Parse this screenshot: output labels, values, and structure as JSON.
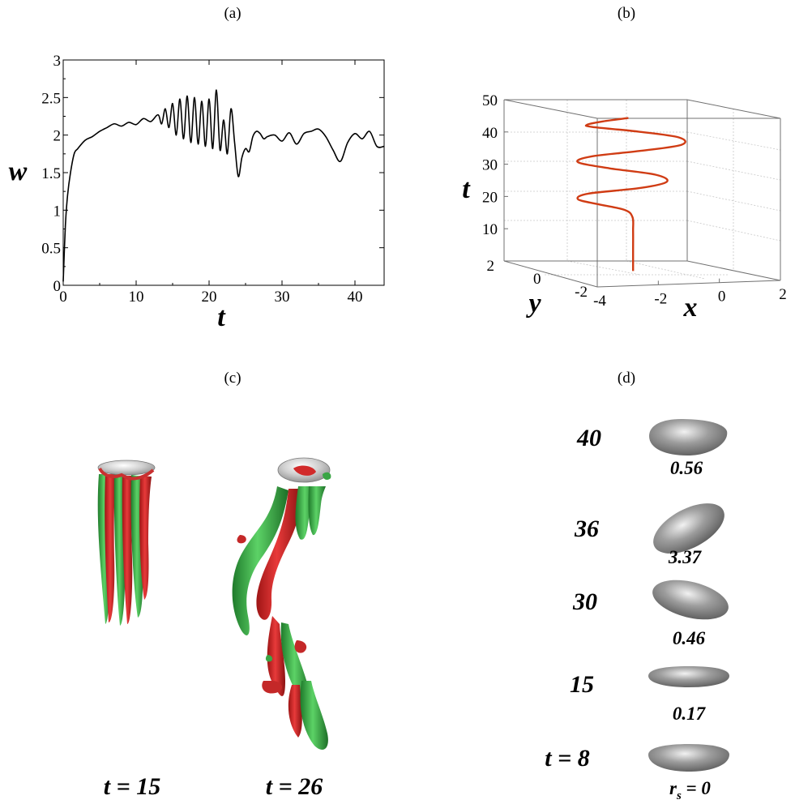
{
  "panels": {
    "a": "(a)",
    "b": "(b)",
    "c": "(c)",
    "d": "(d)"
  },
  "chart_data": [
    {
      "type": "line",
      "panel": "(a)",
      "xlabel": "t",
      "ylabel": "w",
      "xlim": [
        0,
        44
      ],
      "ylim": [
        0,
        3
      ],
      "xticks": [
        "0",
        "10",
        "20",
        "30",
        "40"
      ],
      "yticks": [
        "0",
        "0.5",
        "1",
        "1.5",
        "2",
        "2.5",
        "3"
      ],
      "grid": false,
      "series": [
        {
          "color": "#000000",
          "x": [
            0,
            0.3,
            0.6,
            1.0,
            1.5,
            2.0,
            3.0,
            4.0,
            5.0,
            6.0,
            7.0,
            8.0,
            9.0,
            10.0,
            11.0,
            12.0,
            13.0,
            13.5,
            14.0,
            14.5,
            15.0,
            15.5,
            16.0,
            16.5,
            17.0,
            17.5,
            18.0,
            18.5,
            19.0,
            19.5,
            20.0,
            20.5,
            21.0,
            21.5,
            22.0,
            22.5,
            23.0,
            23.5,
            24.0,
            24.5,
            25.0,
            25.5,
            26.0,
            26.5,
            27.0,
            27.5,
            28.0,
            29.0,
            30.0,
            31.0,
            32.0,
            33.0,
            34.0,
            35.0,
            36.0,
            37.0,
            38.0,
            39.0,
            40.0,
            41.0,
            42.0,
            43.0,
            44.0
          ],
          "y": [
            0.05,
            0.8,
            1.2,
            1.5,
            1.75,
            1.82,
            1.93,
            1.98,
            2.05,
            2.1,
            2.15,
            2.12,
            2.17,
            2.14,
            2.22,
            2.18,
            2.27,
            2.15,
            2.35,
            2.1,
            2.42,
            2.0,
            2.48,
            1.95,
            2.52,
            1.9,
            2.5,
            1.88,
            2.45,
            1.85,
            2.48,
            1.82,
            2.6,
            1.8,
            2.2,
            1.75,
            2.35,
            1.9,
            1.45,
            1.7,
            1.82,
            1.78,
            1.98,
            2.05,
            2.02,
            1.95,
            1.98,
            2.0,
            1.92,
            2.03,
            1.88,
            2.02,
            2.05,
            2.08,
            1.98,
            1.8,
            1.65,
            1.9,
            2.02,
            1.95,
            2.05,
            1.85,
            1.85
          ]
        }
      ]
    },
    {
      "type": "line",
      "panel": "(b)",
      "xlabel": "x",
      "ylabel": "y",
      "zlabel": "t",
      "xlim": [
        -4,
        2
      ],
      "ylim": [
        -2,
        2
      ],
      "zlim": [
        0,
        50
      ],
      "xticks": [
        "-4",
        "-2",
        "0",
        "2"
      ],
      "yticks": [
        "2",
        "0",
        "-2"
      ],
      "zticks": [
        "10",
        "20",
        "30",
        "40",
        "50"
      ],
      "grid": true,
      "series": [
        {
          "color": "#d03c14",
          "x": [
            -1.3,
            -1.3,
            -1.3,
            -1.32,
            -1.5,
            -2.2,
            -2.8,
            -2.6,
            -1.2,
            -0.5,
            -0.8,
            -2.0,
            -2.8,
            -2.5,
            -1.2,
            -0.1,
            -0.1,
            -1.2,
            -2.4,
            -2.5,
            -2.1,
            -1.3
          ],
          "y": [
            0,
            0,
            0,
            0,
            0.1,
            0.3,
            0.4,
            0.2,
            -0.2,
            -0.4,
            -0.3,
            0.1,
            0.4,
            0.2,
            -0.2,
            -0.5,
            -0.4,
            -0.1,
            0.3,
            0.4,
            0.3,
            0.2
          ],
          "t": [
            0,
            6,
            12,
            16,
            18,
            19.5,
            21,
            23,
            25,
            27,
            29,
            30.5,
            32,
            34,
            36,
            38,
            40,
            41.5,
            42.5,
            43,
            44,
            45
          ]
        }
      ]
    }
  ],
  "panel_c": {
    "labels": [
      "t = 15",
      "t = 26"
    ]
  },
  "panel_d": {
    "rows": [
      {
        "time": "40",
        "value": "0.56"
      },
      {
        "time": "36",
        "value": "3.37"
      },
      {
        "time": "30",
        "value": "0.46"
      },
      {
        "time": "15",
        "value": "0.17"
      },
      {
        "time": "t = 8",
        "value": "r",
        "value_sub": "s",
        "value_rest": " = 0"
      }
    ]
  },
  "colors": {
    "positive": "#d4292a",
    "negative": "#3aa545",
    "body": "#8c8c8c",
    "trajectory": "#d03c14"
  }
}
